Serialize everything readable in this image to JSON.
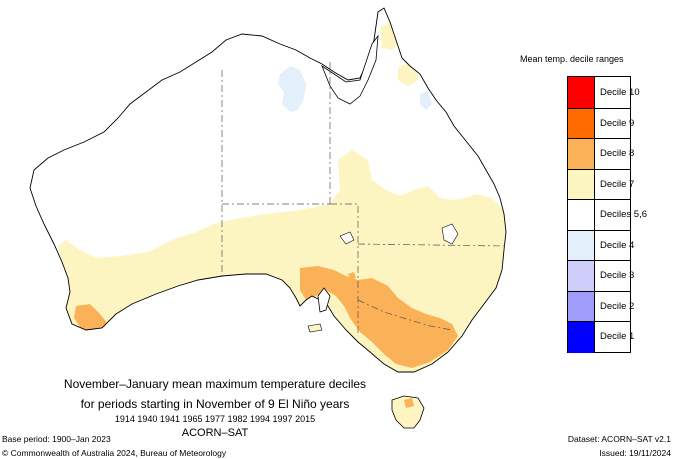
{
  "map": {
    "title_line1": "November–January mean maximum temperature deciles",
    "title_line2": "for periods starting in November of 9 El Niño years",
    "years": "1914 1940 1941 1965 1977 1982 1994 1997 2015",
    "dataset_name": "ACORN–SAT"
  },
  "legend": {
    "title": "Mean temp. decile ranges",
    "items": [
      {
        "label": "Decile 10",
        "color": "#ff0000"
      },
      {
        "label": "Decile 9",
        "color": "#ff6a00"
      },
      {
        "label": "Decile 8",
        "color": "#fbb157"
      },
      {
        "label": "Decile 7",
        "color": "#fdf5c1"
      },
      {
        "label": "Deciles 5,6",
        "color": "#ffffff"
      },
      {
        "label": "Decile 4",
        "color": "#e3f0fb"
      },
      {
        "label": "Decile 3",
        "color": "#cfcdfa"
      },
      {
        "label": "Decile 2",
        "color": "#9f9cfa"
      },
      {
        "label": "Decile 1",
        "color": "#0000ff"
      }
    ]
  },
  "footer": {
    "base_period": "Base period: 1900–Jan 2023",
    "copyright": "© Commonwealth of Australia 2024, Bureau of Meteorology",
    "dataset": "Dataset: ACORN–SAT v2.1",
    "issued": "Issued: 19/11/2024"
  }
}
